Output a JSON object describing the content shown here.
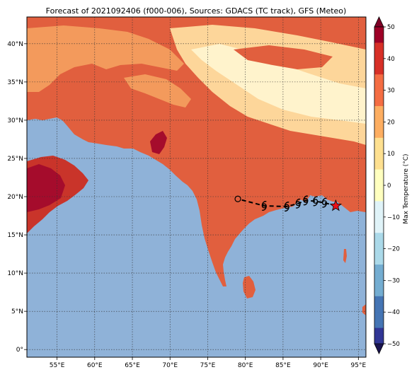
{
  "title": "Forecast of 2021092406 (f000-006), Sources: GDACS (TC track), GFS (Meteo)",
  "map": {
    "lon_range": [
      51,
      96
    ],
    "lat_range": [
      -1,
      43.5
    ],
    "lon_ticks": [
      {
        "v": 55,
        "label": "55°E"
      },
      {
        "v": 60,
        "label": "60°E"
      },
      {
        "v": 65,
        "label": "65°E"
      },
      {
        "v": 70,
        "label": "70°E"
      },
      {
        "v": 75,
        "label": "75°E"
      },
      {
        "v": 80,
        "label": "80°E"
      },
      {
        "v": 85,
        "label": "85°E"
      },
      {
        "v": 90,
        "label": "90°E"
      },
      {
        "v": 95,
        "label": "95°E"
      }
    ],
    "lat_ticks": [
      {
        "v": 0,
        "label": "0°"
      },
      {
        "v": 5,
        "label": "5°N"
      },
      {
        "v": 10,
        "label": "10°N"
      },
      {
        "v": 15,
        "label": "15°N"
      },
      {
        "v": 20,
        "label": "20°N"
      },
      {
        "v": 25,
        "label": "25°N"
      },
      {
        "v": 30,
        "label": "30°N"
      },
      {
        "v": 35,
        "label": "35°N"
      },
      {
        "v": 40,
        "label": "40°N"
      }
    ],
    "grid": "dotted",
    "colors": {
      "ocean": "#8fb2d8",
      "land_warm": "#e15f3e",
      "land_hot": "#c9342a",
      "land_very_hot": "#a50c2c",
      "land_mild": "#f39a5c",
      "land_cool": "#fdd69a",
      "land_cold": "#fff3cc"
    }
  },
  "colorbar": {
    "label": "Max Temperature (°C)",
    "ticks": [
      "50",
      "40",
      "30",
      "20",
      "10",
      "0",
      "−10",
      "−20",
      "−30",
      "−40",
      "−50"
    ],
    "colors": [
      "#9e0127",
      "#d73027",
      "#f46d43",
      "#fdae61",
      "#fee090",
      "#ffffbf",
      "#e0f3f8",
      "#abd9e9",
      "#74add1",
      "#4575b4",
      "#313695"
    ]
  },
  "track": {
    "points": [
      {
        "lon": 92.0,
        "lat": 18.8,
        "symbol": "current-position"
      },
      {
        "lon": 90.5,
        "lat": 19.2,
        "symbol": "cyclone"
      },
      {
        "lon": 89.3,
        "lat": 19.4,
        "symbol": "cyclone"
      },
      {
        "lon": 88.0,
        "lat": 19.5,
        "symbol": "cyclone"
      },
      {
        "lon": 87.0,
        "lat": 19.1,
        "symbol": "cyclone"
      },
      {
        "lon": 85.5,
        "lat": 18.7,
        "symbol": "cyclone"
      },
      {
        "lon": 82.5,
        "lat": 18.8,
        "symbol": "cyclone"
      },
      {
        "lon": 79.0,
        "lat": 19.7,
        "symbol": "open-circle"
      }
    ]
  }
}
